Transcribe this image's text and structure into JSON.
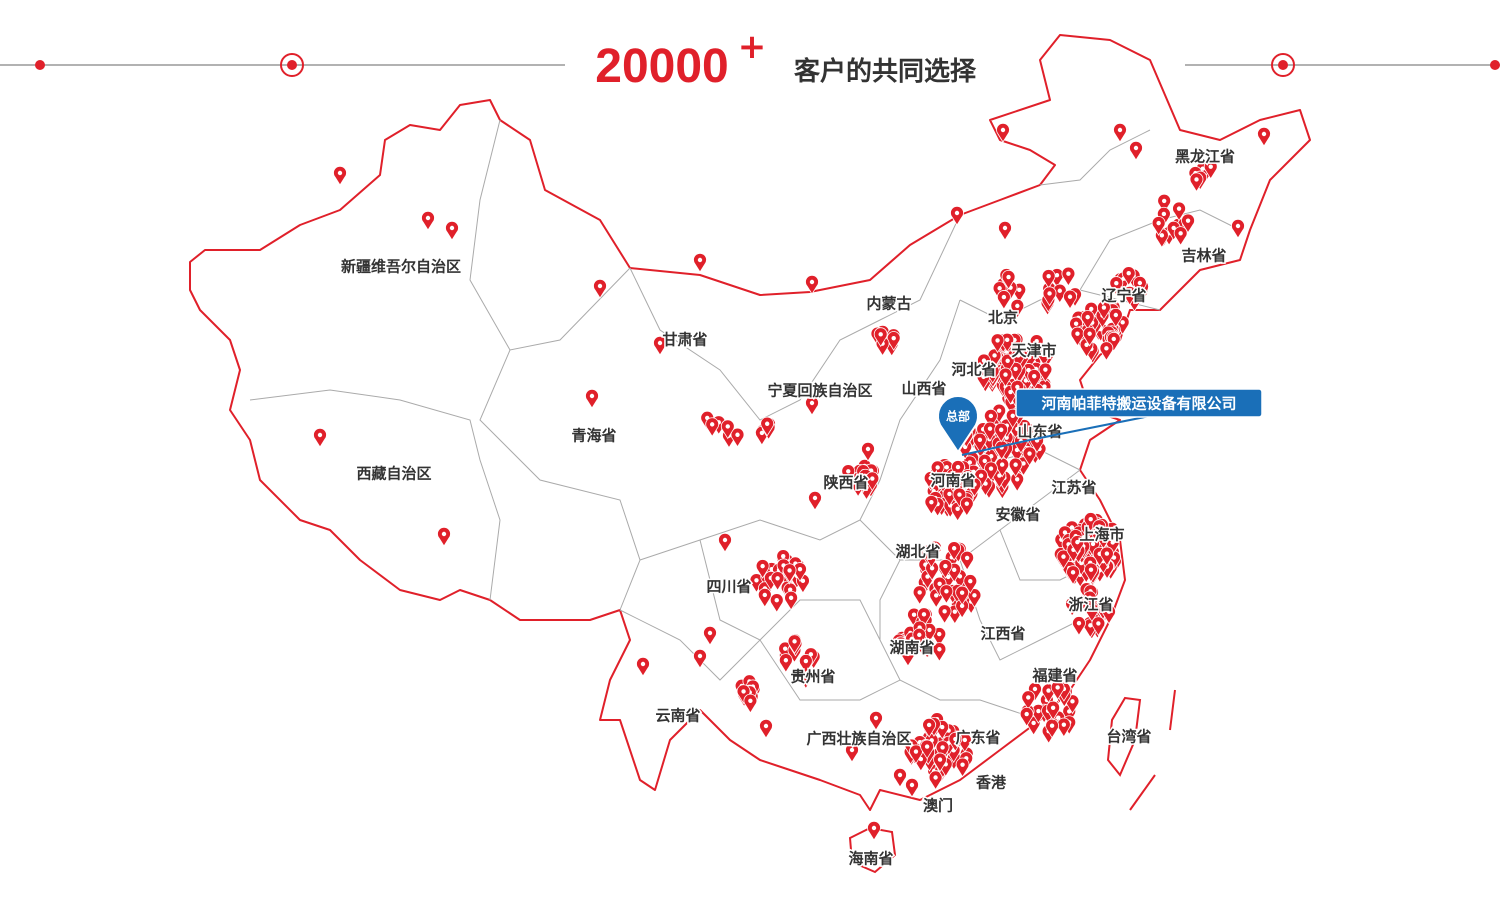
{
  "header": {
    "number": "20000",
    "plus": "+",
    "title": "客户的共同选择"
  },
  "regions": [
    "新疆维吾尔自治区",
    "西藏自治区",
    "青海省",
    "甘肃省",
    "内蒙古",
    "宁夏回族自治区",
    "山西省",
    "陕西省",
    "河北省",
    "北京",
    "天津市",
    "山东省",
    "河南省",
    "江苏省",
    "安徽省",
    "上海市",
    "湖北省",
    "四川省",
    "浙江省",
    "江西省",
    "湖南省",
    "贵州省",
    "福建省",
    "云南省",
    "广西壮族自治区",
    "广东省",
    "台湾省",
    "香港",
    "澳门",
    "海南省",
    "黑龙江省",
    "吉林省",
    "辽宁省"
  ],
  "headquarters": {
    "badge": "总部",
    "company": "河南帕菲特搬运设备有限公司"
  }
}
